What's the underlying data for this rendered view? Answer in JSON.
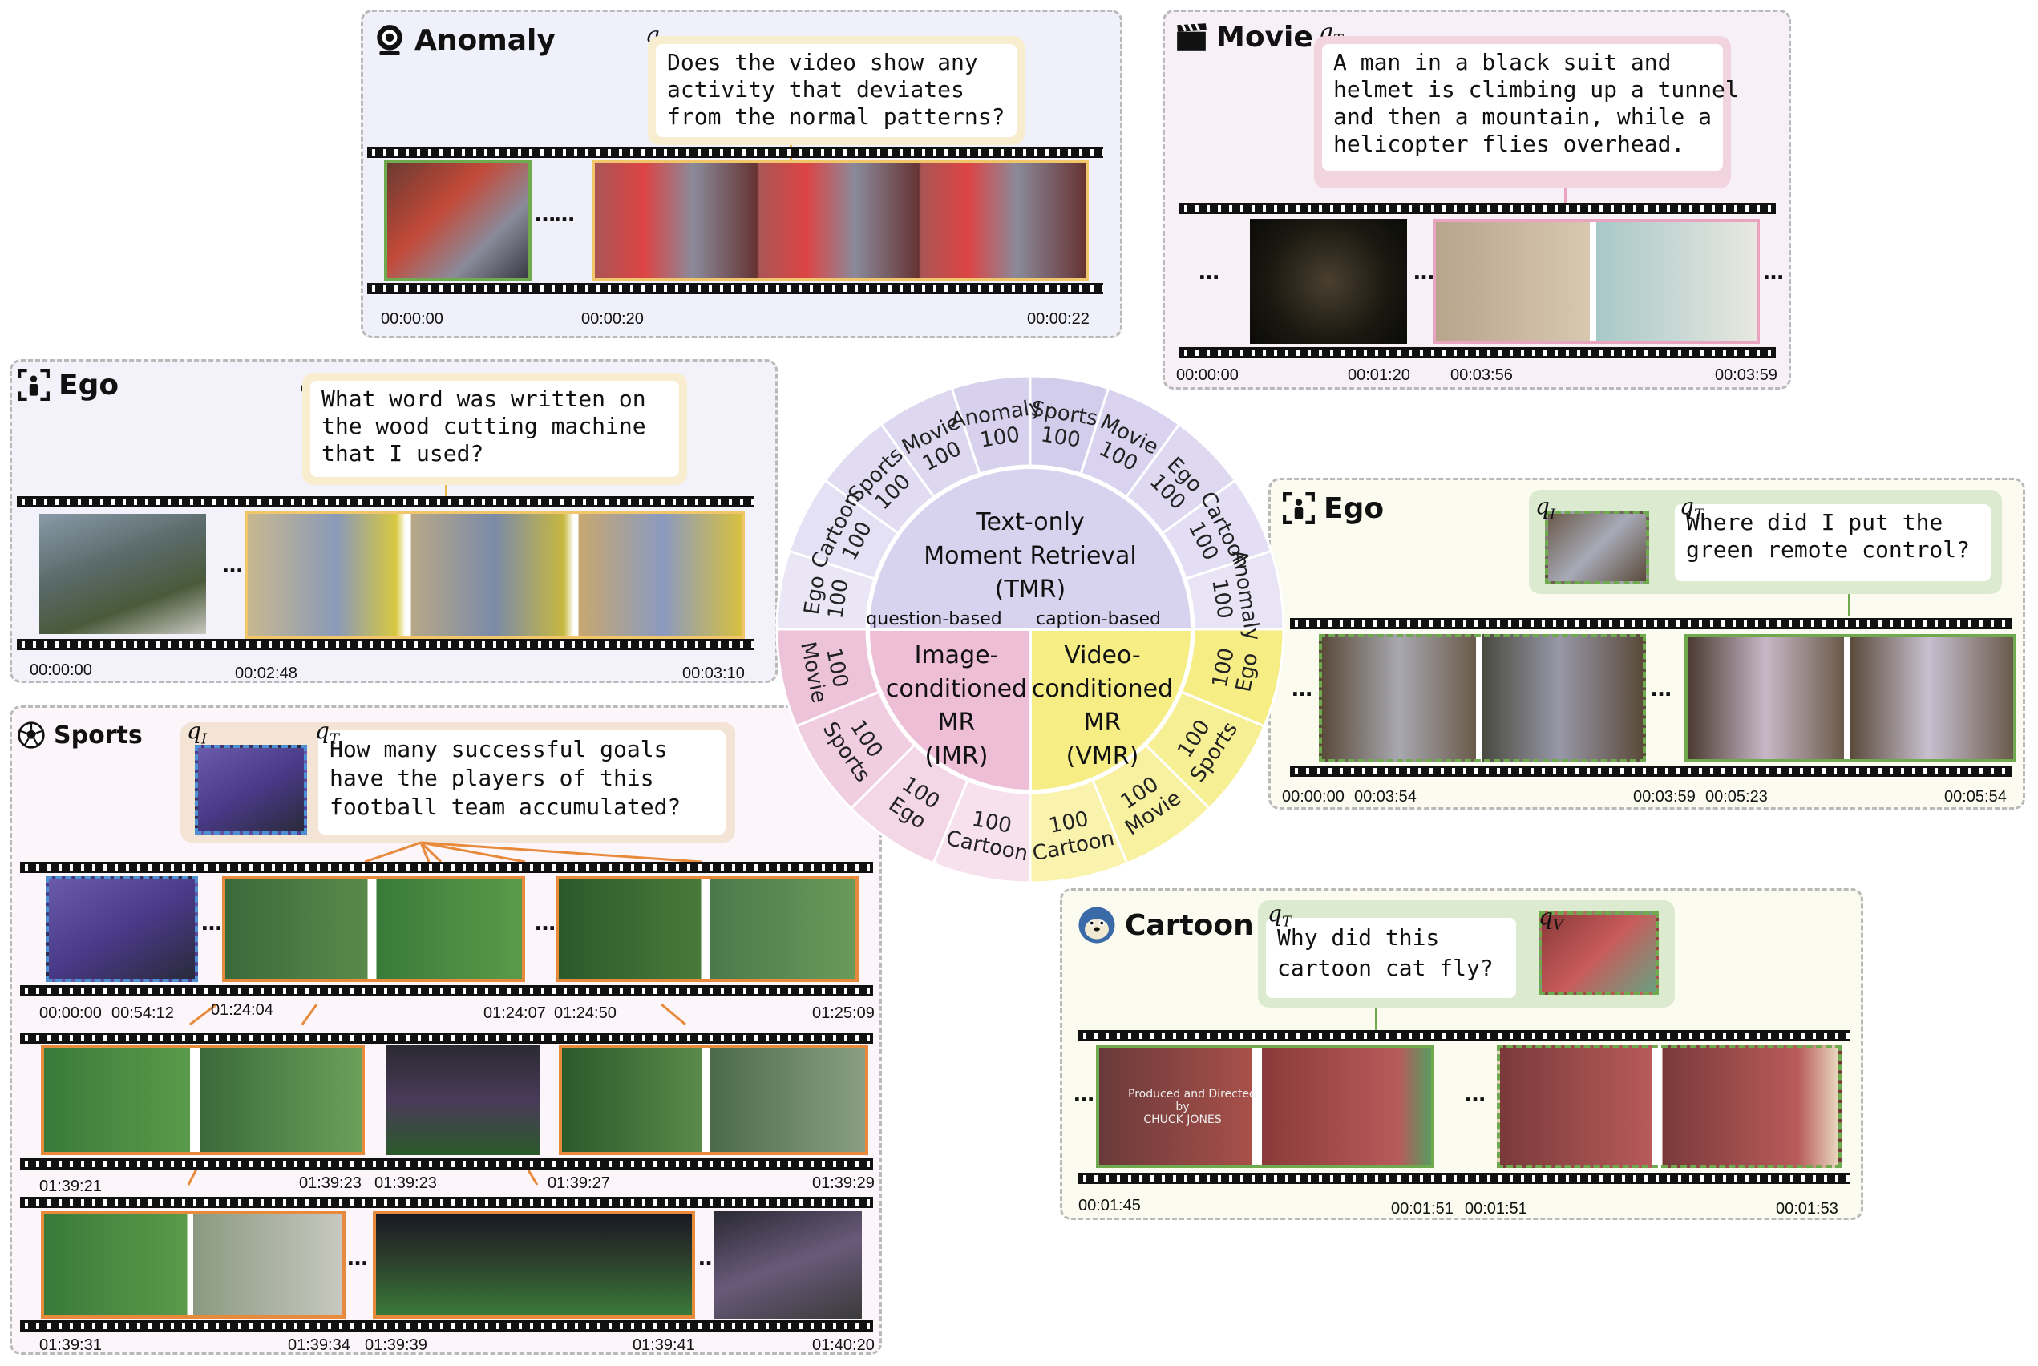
{
  "colors": {
    "anomaly_bg": "#f0f0fa",
    "movie_bg": "#f7f0f7",
    "ego1_bg": "#f3f2fa",
    "sports_bg": "#fcf5fa",
    "ego2_bg": "#fbfbf0",
    "cartoon_bg": "#fbfbf0",
    "tmr": "#cfc8ea",
    "imr": "#efbcd8",
    "vmr": "#f5ec7e",
    "orange": "#e88a3c",
    "green": "#6faa4e",
    "blue": "#4d8fd2",
    "pink": "#e9a4c0",
    "yellow": "#f1c56a"
  },
  "anomaly": {
    "title": "Anomaly",
    "icon": "webcam-icon",
    "q_label": "q",
    "q_sub": "T",
    "question": "Does the video show any\nactivity that deviates\nfrom the normal patterns?",
    "ts": [
      "00:00:00",
      "00:00:20",
      "00:00:22"
    ]
  },
  "movie": {
    "title": "Movie",
    "icon": "clapperboard-icon",
    "q_label": "q",
    "q_sub": "T",
    "question": "A man in a black suit and\nhelmet is climbing up a tunnel\nand then a mountain, while a\nhelicopter flies overhead.",
    "ts": [
      "00:00:00",
      "00:01:20",
      "00:03:56",
      "00:03:59"
    ]
  },
  "ego1": {
    "title": "Ego",
    "icon": "ego-icon",
    "q_label": "q",
    "q_sub": "T",
    "question": "What word was written on\nthe wood cutting machine\nthat I used?",
    "ts": [
      "00:00:00",
      "00:02:48",
      "00:03:10"
    ]
  },
  "ego2": {
    "title": "Ego",
    "icon": "ego-icon",
    "qi_label": "q",
    "qi_sub": "I",
    "q_label": "q",
    "q_sub": "T",
    "question": "Where did I put the\ngreen remote control?",
    "ts": [
      "00:00:00",
      "00:03:54",
      "00:03:59",
      "00:05:23",
      "00:05:54"
    ]
  },
  "sports": {
    "title": "Sports",
    "icon": "soccer-ball-icon",
    "qi_label": "q",
    "qi_sub": "I",
    "q_label": "q",
    "q_sub": "T",
    "question": "How many successful goals\nhave the players of this\nfootball team accumulated?",
    "ts_row1": [
      "00:00:00",
      "00:54:12",
      "01:24:04",
      "01:24:07",
      "01:24:50",
      "01:25:09"
    ],
    "ts_row2": [
      "01:39:21",
      "01:39:23",
      "01:39:23",
      "01:39:27",
      "01:39:29"
    ],
    "ts_row3": [
      "01:39:31",
      "01:39:34",
      "01:39:39",
      "01:39:41",
      "01:40:20"
    ]
  },
  "cartoon": {
    "title": "Cartoon",
    "icon": "cartoon-cat-icon",
    "q_label": "q",
    "q_sub": "T",
    "qv_label": "q",
    "qv_sub": "V",
    "question": "Why did this\ncartoon cat fly?",
    "ts": [
      "00:01:45",
      "00:01:51",
      "00:01:51",
      "00:01:53"
    ],
    "credit": "Produced and Directed\nby\nCHUCK JONES"
  },
  "wheel": {
    "tmr": [
      "Text-only",
      "Moment Retrieval",
      "(TMR)"
    ],
    "tmr_sub_left": "question-based",
    "tmr_sub_right": "caption-based",
    "imr": [
      "Image-",
      "conditioned",
      "MR",
      "(IMR)"
    ],
    "vmr": [
      "Video-",
      "conditioned",
      "MR",
      "(VMR)"
    ],
    "tmr_q": [
      {
        "name": "Ego",
        "n": "100"
      },
      {
        "name": "Cartoon",
        "n": "100"
      },
      {
        "name": "Sports",
        "n": "100"
      },
      {
        "name": "Movie",
        "n": "100"
      },
      {
        "name": "Anomaly",
        "n": "100"
      }
    ],
    "tmr_c": [
      {
        "name": "Sports",
        "n": "100"
      },
      {
        "name": "Movie",
        "n": "100"
      },
      {
        "name": "Ego",
        "n": "100"
      },
      {
        "name": "Cartoon",
        "n": "100"
      },
      {
        "name": "Anomaly",
        "n": "100"
      }
    ],
    "vmr_s": [
      {
        "name": "Ego",
        "n": "100"
      },
      {
        "name": "Sports",
        "n": "100"
      },
      {
        "name": "Movie",
        "n": "100"
      },
      {
        "name": "Cartoon",
        "n": "100"
      }
    ],
    "imr_s": [
      {
        "name": "Cartoon",
        "n": "100"
      },
      {
        "name": "Ego",
        "n": "100"
      },
      {
        "name": "Sports",
        "n": "100"
      },
      {
        "name": "Movie",
        "n": "100"
      }
    ]
  }
}
